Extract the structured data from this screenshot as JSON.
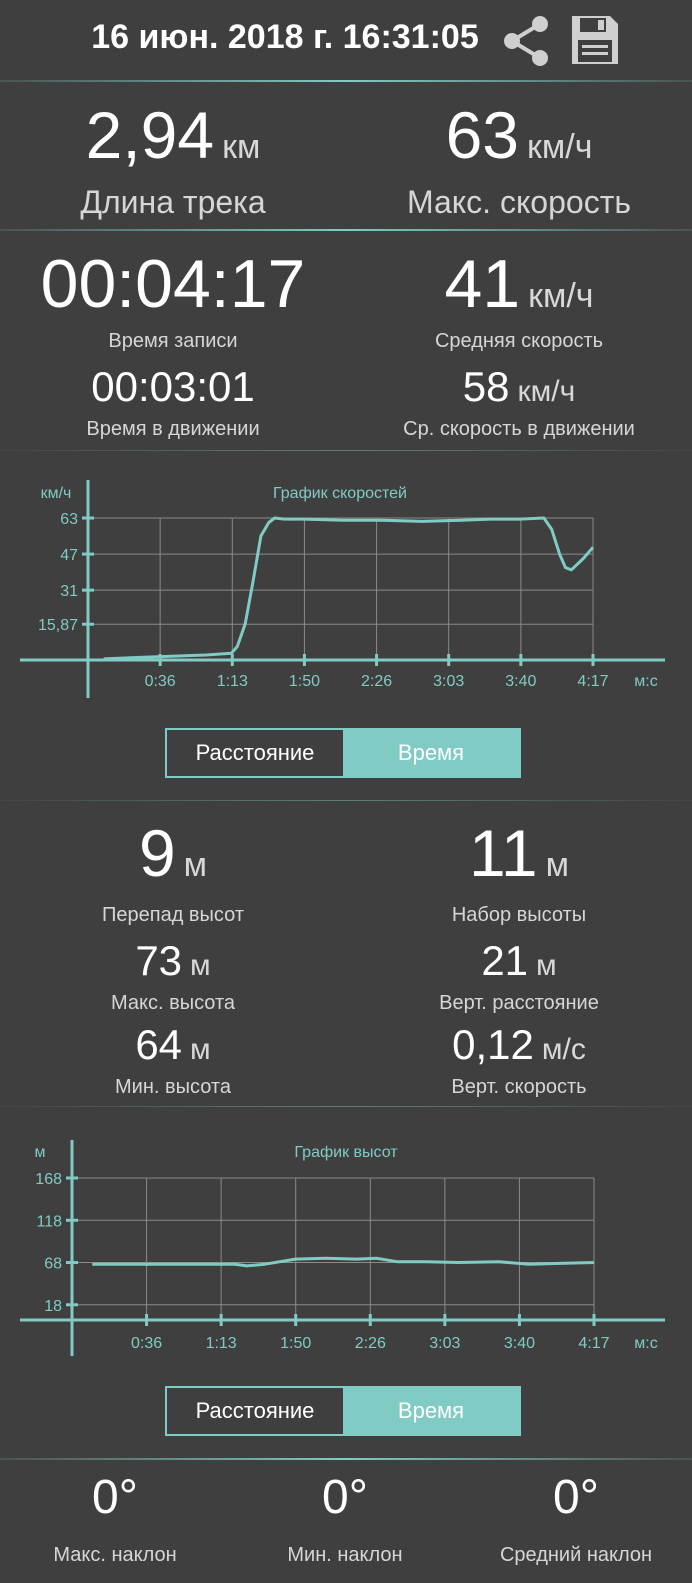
{
  "header": {
    "datetime": "16 июн. 2018 г. 16:31:05"
  },
  "summary": {
    "track_length": {
      "value": "2,94",
      "unit": "км",
      "label": "Длина трека"
    },
    "max_speed": {
      "value": "63",
      "unit": "км/ч",
      "label": "Макс. скорость"
    },
    "record_time": {
      "value": "00:04:17",
      "label": "Время записи"
    },
    "avg_speed": {
      "value": "41",
      "unit": "км/ч",
      "label": "Средняя скорость"
    },
    "moving_time": {
      "value": "00:03:01",
      "label": "Время в движении"
    },
    "avg_moving_speed": {
      "value": "58",
      "unit": "км/ч",
      "label": "Ср. скорость в движении"
    }
  },
  "speed_toggle": {
    "distance": "Расстояние",
    "time": "Время",
    "selected": "time"
  },
  "altitude": {
    "elevation_diff": {
      "value": "9",
      "unit": "м",
      "label": "Перепад высот"
    },
    "elevation_gain": {
      "value": "11",
      "unit": "м",
      "label": "Набор высоты"
    },
    "max_alt": {
      "value": "73",
      "unit": "м",
      "label": "Макс. высота"
    },
    "vert_distance": {
      "value": "21",
      "unit": "м",
      "label": "Верт. расстояние"
    },
    "min_alt": {
      "value": "64",
      "unit": "м",
      "label": "Мин. высота"
    },
    "vert_speed": {
      "value": "0,12",
      "unit": "м/с",
      "label": "Верт. скорость"
    }
  },
  "alt_toggle": {
    "distance": "Расстояние",
    "time": "Время",
    "selected": "time"
  },
  "slope": {
    "max": {
      "value": "0°",
      "label": "Макс. наклон"
    },
    "min": {
      "value": "0°",
      "label": "Мин. наклон"
    },
    "avg": {
      "value": "0°",
      "label": "Средний наклон"
    }
  },
  "colors": {
    "accent": "#80cbc4",
    "background": "#3f3f3f",
    "grid": "#8a8a8a"
  },
  "icons": {
    "share": "share-icon",
    "save": "floppy-save-icon"
  },
  "chart_data": [
    {
      "type": "line",
      "title": "График скоростей",
      "ylabel": "км/ч",
      "xlabel": "м:с",
      "x_ticks": [
        "0:36",
        "1:13",
        "1:50",
        "2:26",
        "3:03",
        "3:40",
        "4:17"
      ],
      "y_ticks": [
        "15,87",
        "31",
        "47",
        "63"
      ],
      "ylim": [
        0,
        63
      ],
      "xlim": [
        0,
        257
      ],
      "series": [
        {
          "x": [
            8,
            30,
            60,
            73,
            76,
            80,
            84,
            88,
            92,
            95,
            100,
            110,
            130,
            150,
            170,
            190,
            205,
            220,
            232,
            236,
            240,
            243,
            246,
            252,
            257
          ],
          "y": [
            0.5,
            1.3,
            2.2,
            3,
            6,
            16,
            35,
            55,
            61,
            63,
            62.5,
            62.5,
            62,
            62,
            61.5,
            62,
            62.5,
            62.5,
            63,
            58,
            47,
            41,
            40,
            45,
            50
          ]
        }
      ]
    },
    {
      "type": "line",
      "title": "График высот",
      "ylabel": "м",
      "xlabel": "м:с",
      "x_ticks": [
        "0:36",
        "1:13",
        "1:50",
        "2:26",
        "3:03",
        "3:40",
        "4:17"
      ],
      "y_ticks": [
        "18",
        "68",
        "118",
        "168"
      ],
      "ylim": [
        0,
        168
      ],
      "xlim": [
        0,
        257
      ],
      "series": [
        {
          "x": [
            10,
            40,
            80,
            85,
            86,
            95,
            110,
            125,
            140,
            150,
            160,
            175,
            190,
            210,
            225,
            240,
            257
          ],
          "y": [
            66,
            66,
            66,
            64.5,
            64,
            66,
            72,
            73,
            72,
            73,
            69,
            69,
            68,
            69,
            66,
            67,
            68
          ]
        }
      ]
    }
  ]
}
